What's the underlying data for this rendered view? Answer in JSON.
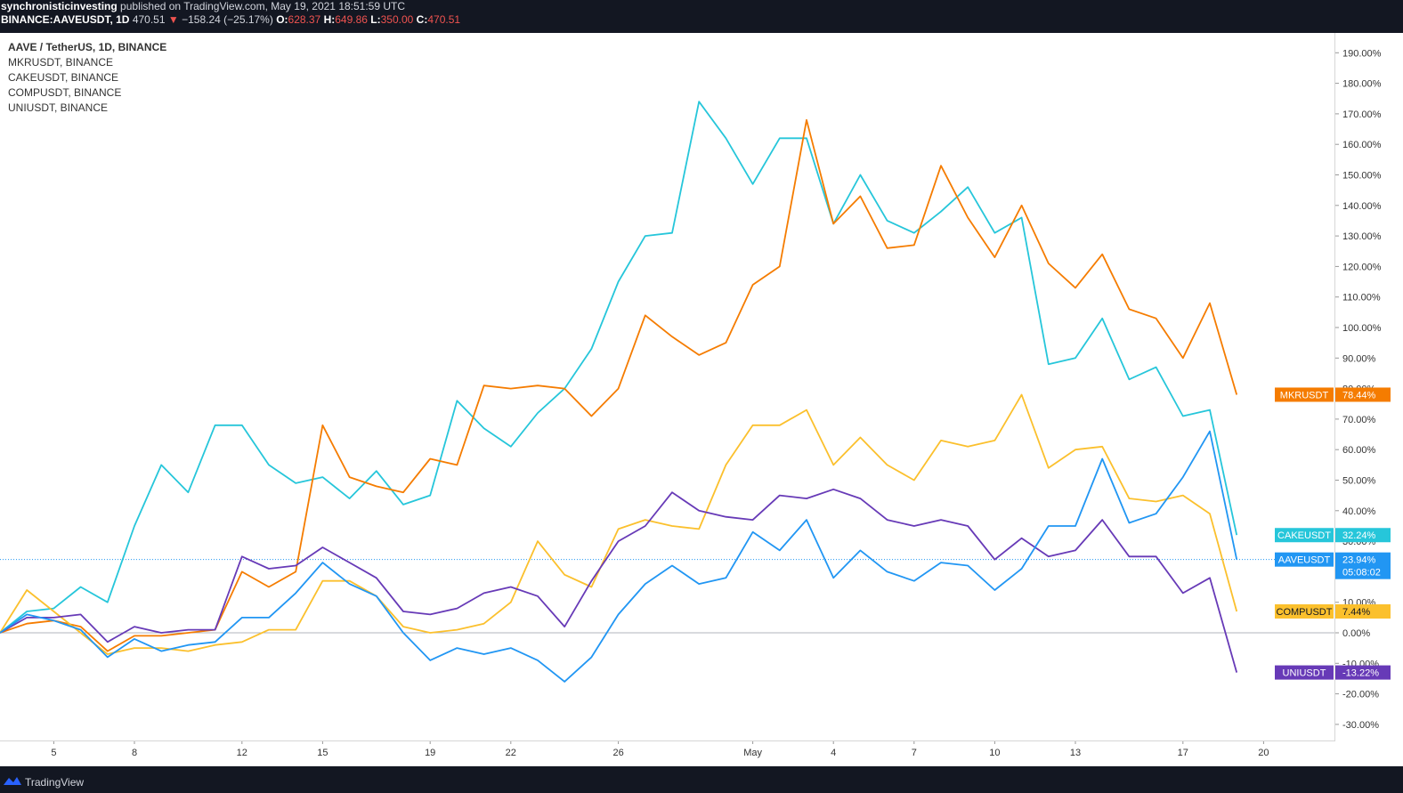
{
  "header": {
    "publisher": "synchronisticinvesting",
    "published_text": "published on TradingView.com, May 19, 2021 18:51:59 UTC",
    "symbol": "BINANCE:AAVEUSDT, 1D",
    "price": "470.51",
    "change": "−158.24 (−25.17%)",
    "o_label": "O:",
    "o_value": "628.37",
    "h_label": "H:",
    "h_value": "649.86",
    "l_label": "L:",
    "l_value": "350.00",
    "c_label": "C:",
    "c_value": "470.51"
  },
  "legend": {
    "main": "AAVE / TetherUS, 1D, BINANCE",
    "items": [
      "MKRUSDT, BINANCE",
      "CAKEUSDT, BINANCE",
      "COMPUSDT, BINANCE",
      "UNIUSDT, BINANCE"
    ]
  },
  "footer": {
    "brand": "TradingView"
  },
  "colors": {
    "aave": "#2196f3",
    "mkr": "#f57c00",
    "cake": "#26c6da",
    "comp": "#fbc02d",
    "uni": "#673ab7",
    "background": "#ffffff",
    "bar": "#131722"
  },
  "chart_data": {
    "type": "line",
    "title": "AAVE / TetherUS, 1D, BINANCE",
    "y_unit": "%",
    "ylim": [
      -35,
      195
    ],
    "y_ticks": [
      -30,
      -20,
      -10,
      0,
      10,
      20,
      30,
      40,
      50,
      60,
      70,
      80,
      90,
      100,
      110,
      120,
      130,
      140,
      150,
      160,
      170,
      180,
      190
    ],
    "x_ticks": [
      {
        "label": "5",
        "index": 2
      },
      {
        "label": "8",
        "index": 5
      },
      {
        "label": "12",
        "index": 9
      },
      {
        "label": "15",
        "index": 12
      },
      {
        "label": "19",
        "index": 16
      },
      {
        "label": "22",
        "index": 19
      },
      {
        "label": "26",
        "index": 23
      },
      {
        "label": "May",
        "index": 28
      },
      {
        "label": "4",
        "index": 31
      },
      {
        "label": "7",
        "index": 34
      },
      {
        "label": "10",
        "index": 37
      },
      {
        "label": "13",
        "index": 40
      },
      {
        "label": "17",
        "index": 44
      },
      {
        "label": "20",
        "index": 47
      }
    ],
    "x_start": "2021-04-03",
    "x_end_index": 47,
    "grid": false,
    "legend_position": "top-left",
    "series": [
      {
        "name": "CAKEUSDT",
        "key": "cake",
        "label": "CAKEUSDT",
        "last": "32.24%",
        "values": [
          0,
          7,
          8,
          15,
          10,
          35,
          55,
          46,
          68,
          68,
          55,
          49,
          51,
          44,
          53,
          42,
          45,
          76,
          67,
          61,
          72,
          80,
          93,
          115,
          130,
          131,
          174,
          162,
          147,
          162,
          162,
          134,
          150,
          135,
          131,
          138,
          146,
          131,
          136,
          88,
          90,
          103,
          83,
          87,
          71,
          73,
          32
        ]
      },
      {
        "name": "MKRUSDT",
        "key": "mkr",
        "label": "MKRUSDT",
        "last": "78.44%",
        "values": [
          0,
          3,
          4,
          2,
          -6,
          -1,
          -1,
          0,
          1,
          20,
          15,
          20,
          68,
          51,
          48,
          46,
          57,
          55,
          81,
          80,
          81,
          80,
          71,
          80,
          104,
          97,
          91,
          95,
          114,
          120,
          168,
          134,
          143,
          126,
          127,
          153,
          136,
          123,
          140,
          121,
          113,
          124,
          106,
          103,
          90,
          108,
          78
        ]
      },
      {
        "name": "COMPUSDT",
        "key": "comp",
        "label": "COMPUSDT",
        "last": "7.44%",
        "values": [
          0,
          14,
          7,
          0,
          -7,
          -5,
          -5,
          -6,
          -4,
          -3,
          1,
          1,
          17,
          17,
          12,
          2,
          0,
          1,
          3,
          10,
          30,
          19,
          15,
          34,
          37,
          35,
          34,
          55,
          68,
          68,
          73,
          55,
          64,
          55,
          50,
          63,
          61,
          63,
          78,
          54,
          60,
          61,
          44,
          43,
          45,
          39,
          7
        ]
      },
      {
        "name": "UNIUSDT",
        "key": "uni",
        "label": "UNIUSDT",
        "last": "-13.22%",
        "values": [
          0,
          5,
          5,
          6,
          -3,
          2,
          0,
          1,
          1,
          25,
          21,
          22,
          28,
          23,
          18,
          7,
          6,
          8,
          13,
          15,
          12,
          2,
          17,
          30,
          35,
          46,
          40,
          38,
          37,
          45,
          44,
          47,
          44,
          37,
          35,
          37,
          35,
          24,
          31,
          25,
          27,
          37,
          25,
          25,
          13,
          18,
          -13
        ]
      },
      {
        "name": "AAVEUSDT",
        "key": "aave",
        "label": "AAVEUSDT",
        "last": "23.94%",
        "countdown": "05:08:02",
        "values": [
          0,
          6,
          4,
          1,
          -8,
          -2,
          -6,
          -4,
          -3,
          5,
          5,
          13,
          23,
          16,
          12,
          0,
          -9,
          -5,
          -7,
          -5,
          -9,
          -16,
          -8,
          6,
          16,
          22,
          16,
          18,
          33,
          27,
          37,
          18,
          27,
          20,
          17,
          23,
          22,
          14,
          21,
          35,
          35,
          57,
          36,
          39,
          51,
          66,
          24
        ]
      }
    ]
  }
}
